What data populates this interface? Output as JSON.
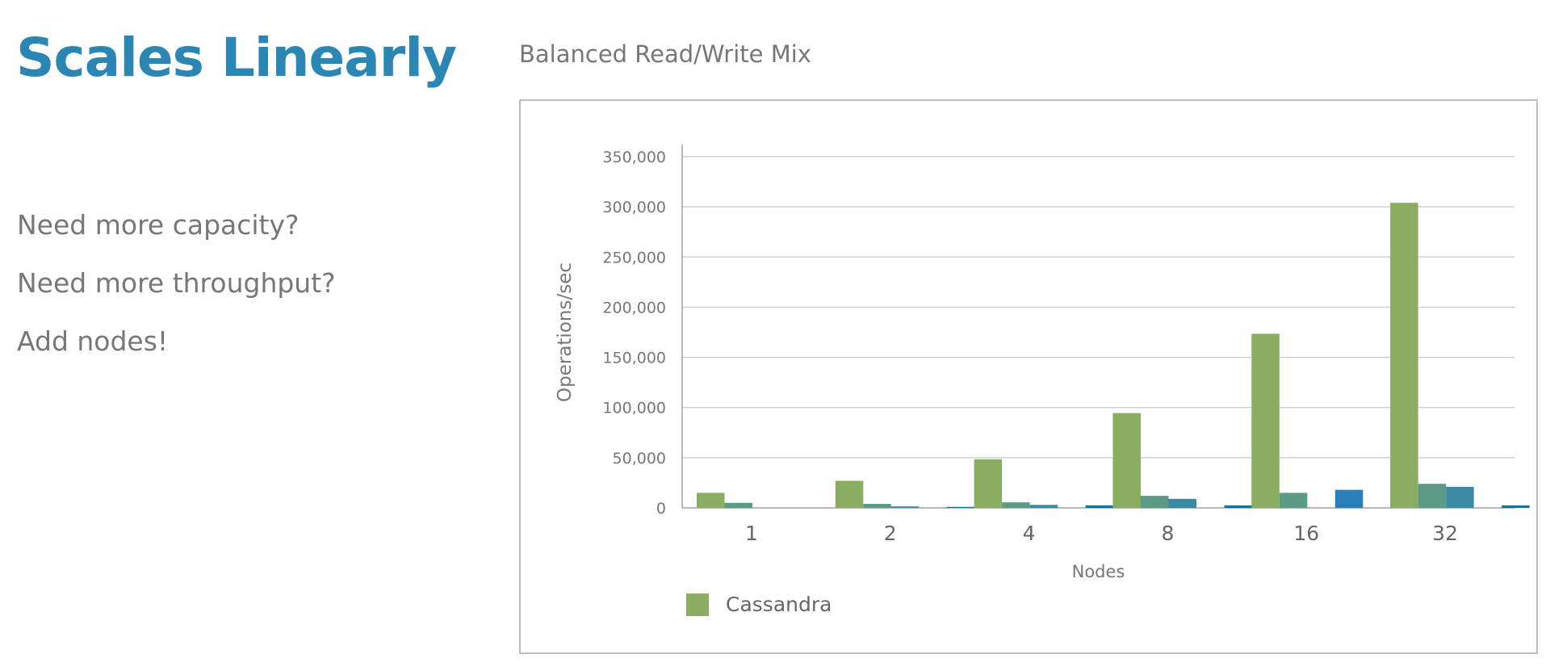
{
  "slide": {
    "title": "Scales Linearly",
    "bullets": [
      "Need more capacity?",
      "Need more throughput?",
      "Add nodes!"
    ]
  },
  "colors": {
    "title": "#2b86b4",
    "text": "#777777",
    "series": [
      "#8aad62",
      "#5b9b85",
      "#3a8aa3",
      "#2a7fb8",
      "#1f6e99"
    ]
  },
  "chart_data": {
    "type": "bar",
    "title": "Balanced Read/Write Mix",
    "xlabel": "Nodes",
    "ylabel": "Operations/sec",
    "categories": [
      "1",
      "2",
      "4",
      "8",
      "16",
      "32"
    ],
    "ylim": [
      0,
      350000
    ],
    "yticks": [
      0,
      50000,
      100000,
      150000,
      200000,
      250000,
      300000,
      350000
    ],
    "ytick_labels": [
      "0",
      "50,000",
      "100,000",
      "150,000",
      "200,000",
      "250,000",
      "300,000",
      "350,000"
    ],
    "grid": true,
    "legend_position": "bottom-left",
    "series": [
      {
        "name": "Cassandra",
        "values": [
          15000,
          27000,
          48500,
          94500,
          173500,
          304000
        ]
      },
      {
        "values": [
          5000,
          4000,
          5500,
          12000,
          15000,
          24000
        ]
      },
      {
        "values": [
          0,
          1500,
          3000,
          9000,
          0,
          21000
        ]
      },
      {
        "values": [
          0,
          0,
          0,
          0,
          18000,
          0
        ]
      },
      {
        "values": [
          0,
          1000,
          2500,
          2500,
          0,
          2500
        ]
      }
    ]
  }
}
